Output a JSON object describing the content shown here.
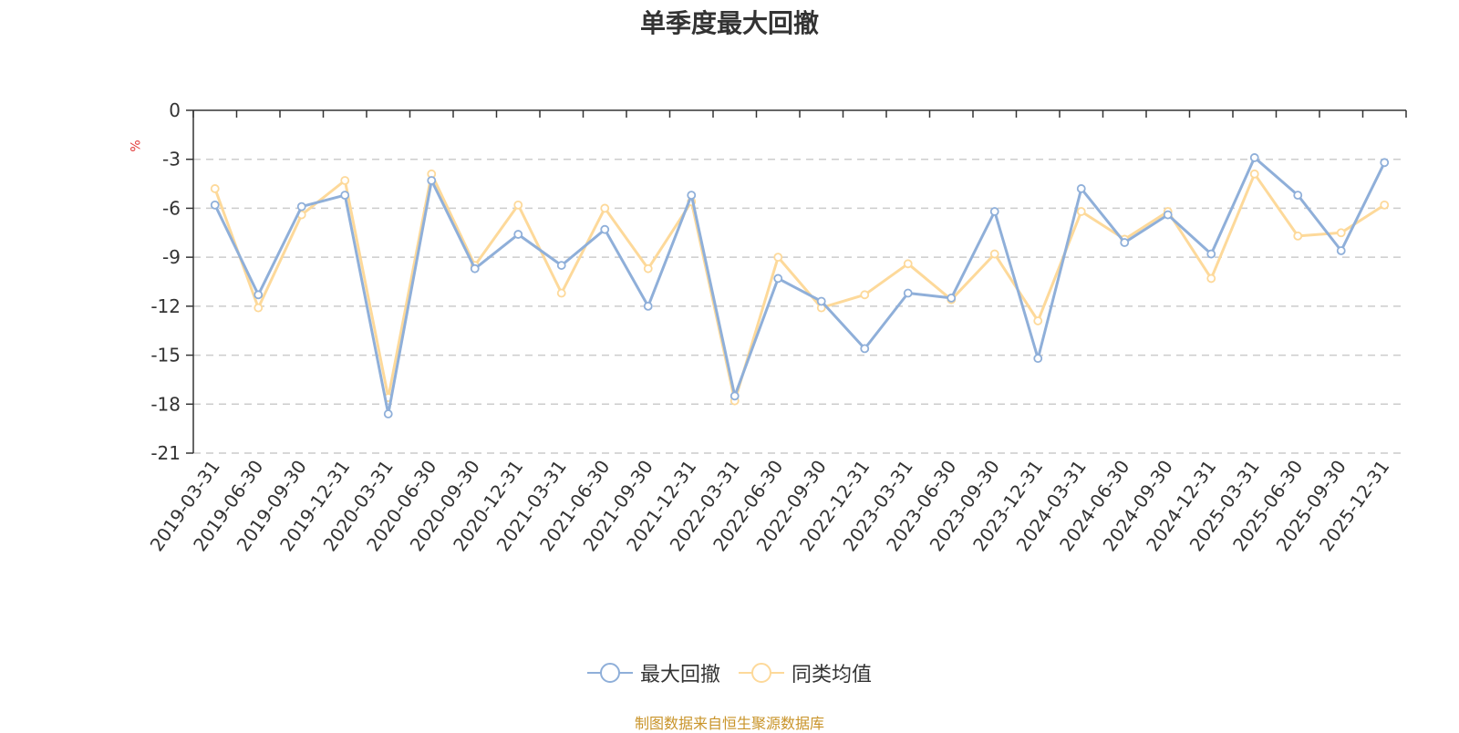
{
  "source_note": "制图数据来自恒生聚源数据库",
  "colors": {
    "series1": "#8fafd9",
    "series2": "#fdd99a",
    "axis": "#333333",
    "grid": "#cccccc",
    "unit": "#e23b3b",
    "source": "#c9942a"
  },
  "chart_data": {
    "type": "line",
    "title": "单季度最大回撤",
    "ylabel": "%",
    "ylim": [
      -21,
      0
    ],
    "yticks": [
      0,
      -3,
      -6,
      -9,
      -12,
      -15,
      -18,
      -21
    ],
    "grid": true,
    "legend_position": "bottom",
    "categories": [
      "2019-03-31",
      "2019-06-30",
      "2019-09-30",
      "2019-12-31",
      "2020-03-31",
      "2020-06-30",
      "2020-09-30",
      "2020-12-31",
      "2021-03-31",
      "2021-06-30",
      "2021-09-30",
      "2021-12-31",
      "2022-03-31",
      "2022-06-30",
      "2022-09-30",
      "2022-12-31",
      "2023-03-31",
      "2023-06-30",
      "2023-09-30",
      "2023-12-31",
      "2024-03-31",
      "2024-06-30",
      "2024-09-30",
      "2024-12-31",
      "2025-03-31",
      "2025-06-30",
      "2025-09-30",
      "2025-12-31"
    ],
    "series": [
      {
        "name": "最大回撤",
        "values": [
          -5.8,
          -11.3,
          -5.9,
          -5.2,
          -18.6,
          -4.3,
          -9.7,
          -7.6,
          -9.5,
          -7.3,
          -12.0,
          -5.2,
          -17.5,
          -10.3,
          -11.7,
          -14.6,
          -11.2,
          -11.5,
          -6.2,
          -15.2,
          -4.8,
          -8.1,
          -6.4,
          -8.8,
          -2.9,
          -5.2,
          -8.6,
          -3.2
        ]
      },
      {
        "name": "同类均值",
        "values": [
          -4.8,
          -12.1,
          -6.4,
          -4.3,
          -17.6,
          -3.9,
          -9.5,
          -5.8,
          -11.2,
          -6.0,
          -9.7,
          -5.6,
          -17.8,
          -9.0,
          -12.1,
          -11.3,
          -9.4,
          -11.6,
          -8.8,
          -12.9,
          -6.2,
          -7.9,
          -6.2,
          -10.3,
          -3.9,
          -7.7,
          -7.5,
          -5.8
        ]
      }
    ]
  }
}
